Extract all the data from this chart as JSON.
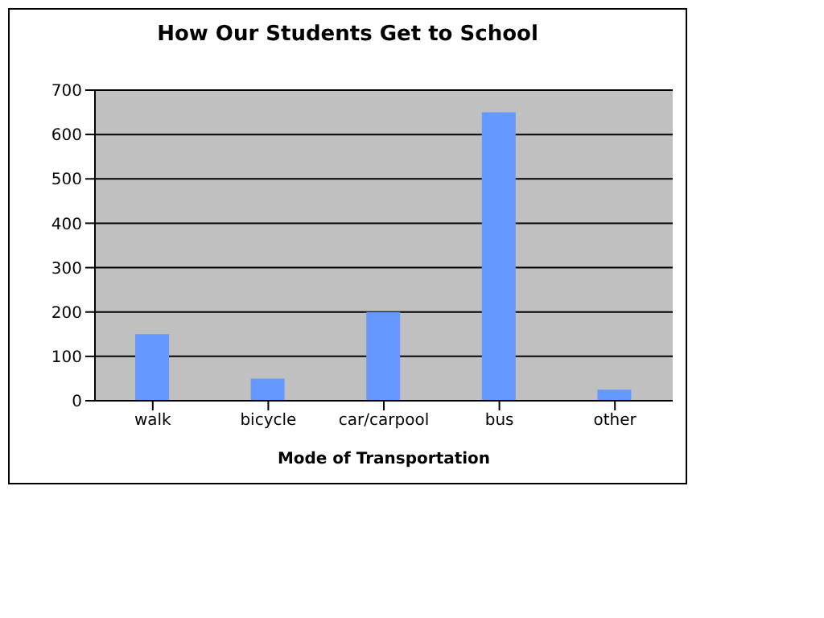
{
  "chart_data": {
    "type": "bar",
    "title": "How Our Students Get to School",
    "xlabel": "Mode of Transportation",
    "categories": [
      "walk",
      "bicycle",
      "car/carpool",
      "bus",
      "other"
    ],
    "values": [
      150,
      50,
      200,
      650,
      25
    ],
    "color": "#6699ff",
    "ylim": [
      0,
      700
    ],
    "yticks": [
      0,
      100,
      200,
      300,
      400,
      500,
      600,
      700
    ],
    "grid": "y"
  }
}
